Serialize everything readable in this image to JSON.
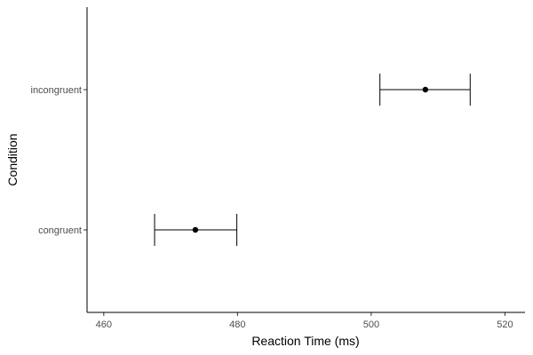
{
  "chart_data": {
    "type": "scatter",
    "xlabel": "Reaction Time (ms)",
    "ylabel": "Condition",
    "xlim": [
      457.5,
      523
    ],
    "x_ticks": [
      460,
      480,
      500,
      520
    ],
    "x_tick_labels": [
      "460",
      "480",
      "500",
      "520"
    ],
    "categories": [
      "congruent",
      "incongruent"
    ],
    "points": [
      {
        "category": "congruent",
        "mean": 473.7,
        "lower": 467.6,
        "upper": 479.9
      },
      {
        "category": "incongruent",
        "mean": 508.1,
        "lower": 501.3,
        "upper": 514.8
      }
    ],
    "grid": false,
    "colors": {
      "marks": "#000000",
      "axis": "#000000",
      "tick_text": "#4d4d4d"
    }
  }
}
